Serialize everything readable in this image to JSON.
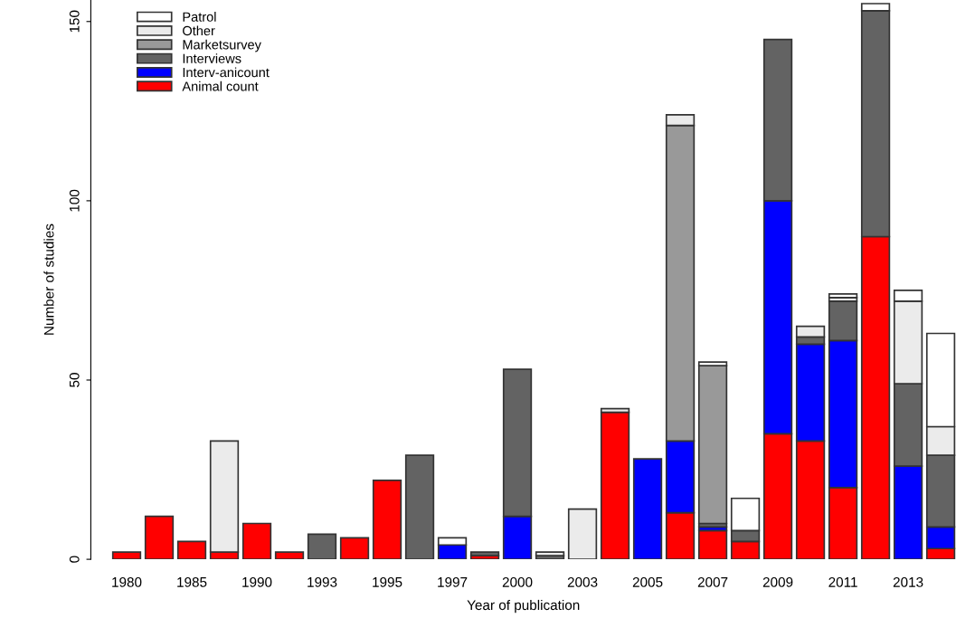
{
  "chart_data": {
    "type": "bar",
    "stacked": true,
    "xlabel": "Year of publication",
    "ylabel": "Number of studies",
    "categories": [
      "1980",
      null,
      "1985",
      null,
      "1990",
      null,
      "1993",
      null,
      "1995",
      null,
      "1997",
      null,
      "2000",
      null,
      "2003",
      null,
      "2005",
      null,
      "2007",
      null,
      "2009",
      null,
      "2011",
      null,
      "2013",
      null
    ],
    "series": [
      {
        "name": "Animal count",
        "color": "#ff0000",
        "values": [
          2,
          12,
          5,
          2,
          10,
          2,
          null,
          6,
          22,
          null,
          null,
          1,
          null,
          null,
          null,
          41,
          null,
          13,
          8,
          5,
          35,
          33,
          20,
          90,
          null,
          3
        ]
      },
      {
        "name": "Interv-anicount",
        "color": "#0000ff",
        "values": [
          null,
          null,
          null,
          null,
          null,
          null,
          null,
          null,
          null,
          null,
          4,
          null,
          12,
          null,
          null,
          null,
          28,
          20,
          1,
          null,
          65,
          27,
          41,
          null,
          26,
          6
        ]
      },
      {
        "name": "Interviews",
        "color": "#636363",
        "values": [
          null,
          null,
          null,
          null,
          null,
          null,
          7,
          null,
          null,
          29,
          null,
          1,
          41,
          1,
          null,
          null,
          null,
          null,
          1,
          3,
          45,
          2,
          11,
          63,
          23,
          20
        ]
      },
      {
        "name": "Marketsurvey",
        "color": "#999999",
        "values": [
          null,
          null,
          null,
          null,
          null,
          null,
          null,
          null,
          null,
          null,
          null,
          null,
          null,
          null,
          null,
          null,
          null,
          88,
          44,
          null,
          null,
          null,
          null,
          null,
          null,
          null
        ]
      },
      {
        "name": "Other",
        "color": "#ebebeb",
        "values": [
          null,
          null,
          null,
          31,
          null,
          null,
          null,
          null,
          null,
          null,
          null,
          null,
          null,
          1,
          14,
          1,
          null,
          3,
          null,
          null,
          null,
          3,
          1,
          null,
          23,
          8
        ]
      },
      {
        "name": "Patrol",
        "color": "#ffffff",
        "values": [
          null,
          null,
          null,
          null,
          null,
          null,
          null,
          null,
          null,
          null,
          2,
          null,
          null,
          null,
          null,
          null,
          null,
          null,
          1,
          9,
          null,
          null,
          1,
          2,
          3,
          26
        ]
      }
    ],
    "ylim": [
      0,
      156
    ],
    "yticks": [
      0,
      50,
      100,
      150
    ],
    "grid": false,
    "legend": "top left"
  }
}
